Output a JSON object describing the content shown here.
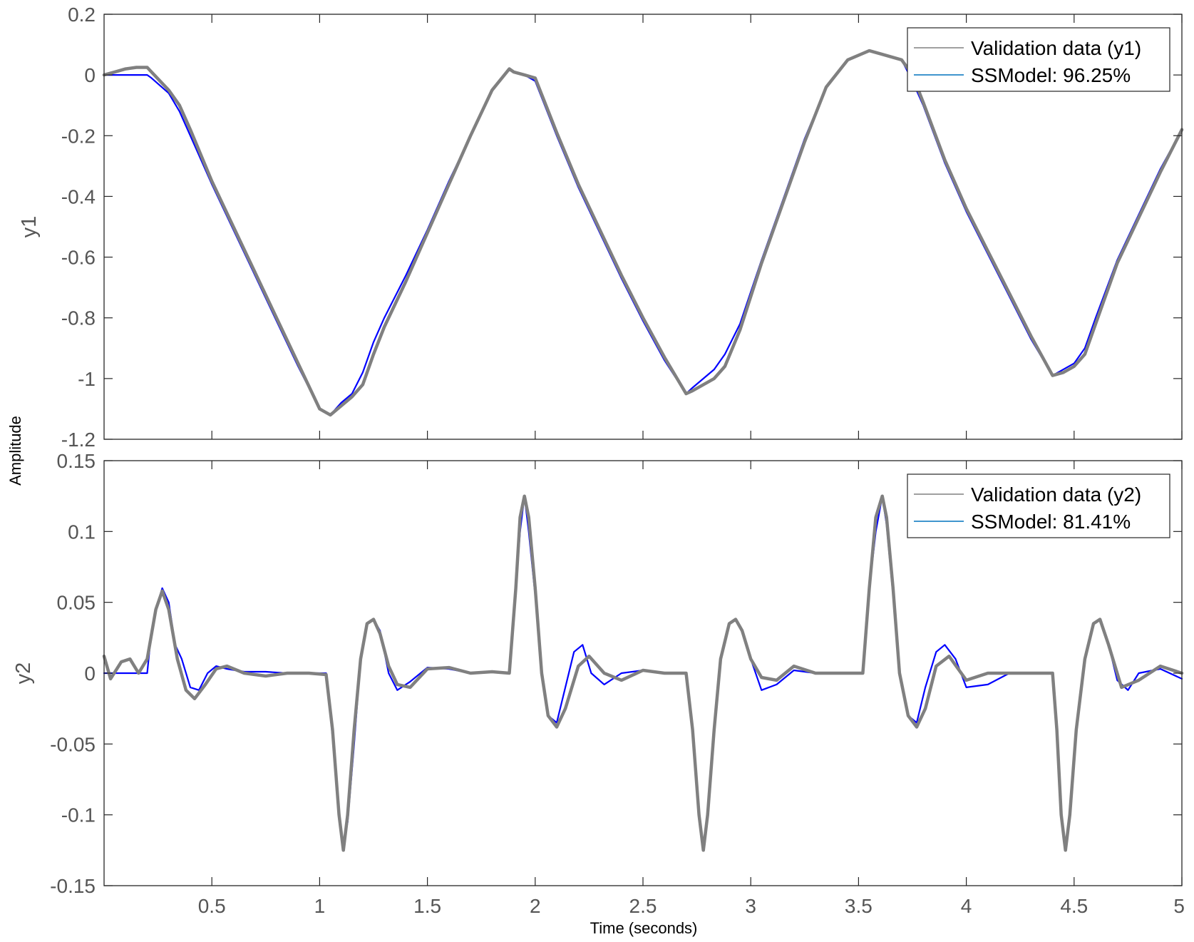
{
  "figure": {
    "ylabel": "Amplitude",
    "xlabel": "Time (seconds)"
  },
  "colors": {
    "validation": "#808080",
    "model": "#0000ff",
    "legend_model_swatch": "#0072bd",
    "axis": "#262626",
    "tick_text": "#555555"
  },
  "chart_data": [
    {
      "type": "line",
      "ylabel": "y1",
      "xlim": [
        0,
        5
      ],
      "ylim": [
        -1.2,
        0.2
      ],
      "yticks": [
        0.2,
        0,
        -0.2,
        -0.4,
        -0.6,
        -0.8,
        -1,
        -1.2
      ],
      "xticks": [],
      "grid": false,
      "legend_position": "top-right",
      "series": [
        {
          "name": "Validation data (y1)",
          "color": "#808080",
          "x": [
            0,
            0.05,
            0.1,
            0.15,
            0.2,
            0.22,
            0.3,
            0.35,
            0.4,
            0.5,
            0.6,
            0.7,
            0.8,
            0.9,
            1.0,
            1.05,
            1.1,
            1.15,
            1.2,
            1.25,
            1.3,
            1.4,
            1.5,
            1.6,
            1.7,
            1.8,
            1.88,
            1.9,
            1.95,
            2.0,
            2.1,
            2.2,
            2.3,
            2.4,
            2.5,
            2.6,
            2.7,
            2.73,
            2.78,
            2.83,
            2.88,
            2.95,
            3.05,
            3.15,
            3.25,
            3.35,
            3.45,
            3.55,
            3.6,
            3.7,
            3.75,
            3.8,
            3.9,
            4.0,
            4.1,
            4.2,
            4.3,
            4.4,
            4.45,
            4.5,
            4.55,
            4.6,
            4.7,
            4.8,
            4.9,
            5.0
          ],
          "values": [
            0,
            0.01,
            0.02,
            0.025,
            0.025,
            0.01,
            -0.05,
            -0.1,
            -0.18,
            -0.35,
            -0.5,
            -0.65,
            -0.8,
            -0.95,
            -1.1,
            -1.12,
            -1.09,
            -1.06,
            -1.02,
            -0.92,
            -0.83,
            -0.68,
            -0.52,
            -0.36,
            -0.2,
            -0.05,
            0.02,
            0.01,
            0.0,
            -0.01,
            -0.19,
            -0.36,
            -0.51,
            -0.66,
            -0.8,
            -0.93,
            -1.05,
            -1.04,
            -1.02,
            -1.0,
            -0.96,
            -0.84,
            -0.62,
            -0.42,
            -0.22,
            -0.04,
            0.05,
            0.08,
            0.07,
            0.05,
            -0.0,
            -0.09,
            -0.28,
            -0.44,
            -0.58,
            -0.72,
            -0.86,
            -0.99,
            -0.98,
            -0.96,
            -0.92,
            -0.82,
            -0.62,
            -0.47,
            -0.32,
            -0.18
          ]
        },
        {
          "name": "SSModel: 96.25%",
          "color": "#0000ff",
          "x": [
            0,
            0.05,
            0.1,
            0.15,
            0.2,
            0.22,
            0.3,
            0.35,
            0.4,
            0.5,
            0.6,
            0.7,
            0.8,
            0.9,
            1.0,
            1.05,
            1.1,
            1.15,
            1.2,
            1.25,
            1.3,
            1.4,
            1.5,
            1.6,
            1.7,
            1.8,
            1.88,
            1.9,
            1.95,
            2.0,
            2.1,
            2.2,
            2.3,
            2.4,
            2.5,
            2.6,
            2.7,
            2.73,
            2.78,
            2.83,
            2.88,
            2.95,
            3.05,
            3.15,
            3.25,
            3.35,
            3.45,
            3.55,
            3.6,
            3.7,
            3.75,
            3.8,
            3.9,
            4.0,
            4.1,
            4.2,
            4.3,
            4.4,
            4.45,
            4.5,
            4.55,
            4.6,
            4.7,
            4.8,
            4.9,
            5.0
          ],
          "values": [
            0,
            0,
            0,
            0,
            0,
            -0.01,
            -0.06,
            -0.12,
            -0.2,
            -0.36,
            -0.51,
            -0.66,
            -0.81,
            -0.96,
            -1.1,
            -1.12,
            -1.08,
            -1.05,
            -0.98,
            -0.88,
            -0.8,
            -0.66,
            -0.51,
            -0.35,
            -0.2,
            -0.05,
            0.02,
            0.01,
            0.0,
            -0.02,
            -0.2,
            -0.37,
            -0.52,
            -0.67,
            -0.81,
            -0.94,
            -1.05,
            -1.03,
            -1.0,
            -0.97,
            -0.92,
            -0.82,
            -0.61,
            -0.41,
            -0.21,
            -0.04,
            0.05,
            0.08,
            0.07,
            0.05,
            -0.02,
            -0.1,
            -0.29,
            -0.45,
            -0.59,
            -0.73,
            -0.87,
            -0.99,
            -0.97,
            -0.95,
            -0.9,
            -0.8,
            -0.61,
            -0.46,
            -0.31,
            -0.18
          ]
        }
      ]
    },
    {
      "type": "line",
      "ylabel": "y2",
      "xlim": [
        0,
        5
      ],
      "ylim": [
        -0.15,
        0.15
      ],
      "yticks": [
        0.15,
        0.1,
        0.05,
        0,
        -0.05,
        -0.1,
        -0.15
      ],
      "xticks": [
        "0.5",
        "1",
        "1.5",
        "2",
        "2.5",
        "3",
        "3.5",
        "4",
        "4.5",
        "5"
      ],
      "grid": false,
      "legend_position": "top-right",
      "series": [
        {
          "name": "Validation data (y2)",
          "color": "#808080",
          "x": [
            0,
            0.03,
            0.08,
            0.12,
            0.16,
            0.2,
            0.24,
            0.27,
            0.3,
            0.34,
            0.38,
            0.42,
            0.47,
            0.52,
            0.57,
            0.65,
            0.75,
            0.85,
            0.95,
            1.03,
            1.06,
            1.09,
            1.11,
            1.13,
            1.16,
            1.19,
            1.22,
            1.25,
            1.28,
            1.32,
            1.36,
            1.42,
            1.5,
            1.6,
            1.7,
            1.8,
            1.88,
            1.91,
            1.93,
            1.95,
            1.97,
            2.0,
            2.03,
            2.06,
            2.1,
            2.14,
            2.2,
            2.25,
            2.32,
            2.4,
            2.5,
            2.6,
            2.7,
            2.73,
            2.76,
            2.78,
            2.8,
            2.83,
            2.86,
            2.9,
            2.93,
            2.96,
            3.0,
            3.05,
            3.12,
            3.2,
            3.3,
            3.4,
            3.52,
            3.55,
            3.58,
            3.61,
            3.63,
            3.66,
            3.69,
            3.73,
            3.77,
            3.81,
            3.86,
            3.92,
            4.0,
            4.1,
            4.2,
            4.3,
            4.4,
            4.42,
            4.44,
            4.46,
            4.48,
            4.51,
            4.55,
            4.59,
            4.62,
            4.66,
            4.72,
            4.8,
            4.9,
            5.0
          ],
          "values": [
            0.012,
            -0.004,
            0.008,
            0.01,
            0.0,
            0.01,
            0.045,
            0.058,
            0.045,
            0.01,
            -0.012,
            -0.018,
            -0.008,
            0.003,
            0.005,
            0.0,
            -0.002,
            0.0,
            0.0,
            -0.001,
            -0.04,
            -0.1,
            -0.125,
            -0.1,
            -0.04,
            0.01,
            0.035,
            0.038,
            0.028,
            0.005,
            -0.008,
            -0.01,
            0.003,
            0.004,
            0.0,
            0.001,
            0.0,
            0.06,
            0.11,
            0.125,
            0.11,
            0.06,
            0.0,
            -0.03,
            -0.038,
            -0.025,
            0.005,
            0.012,
            0.0,
            -0.005,
            0.002,
            0.0,
            0.0,
            -0.04,
            -0.1,
            -0.125,
            -0.1,
            -0.04,
            0.01,
            0.035,
            0.038,
            0.03,
            0.01,
            -0.003,
            -0.005,
            0.005,
            0.0,
            0.0,
            0.0,
            0.06,
            0.11,
            0.125,
            0.11,
            0.06,
            0.0,
            -0.03,
            -0.038,
            -0.025,
            0.005,
            0.012,
            -0.005,
            0.0,
            0.0,
            0.0,
            0.0,
            -0.04,
            -0.1,
            -0.125,
            -0.1,
            -0.04,
            0.01,
            0.035,
            0.038,
            0.02,
            -0.01,
            -0.005,
            0.005,
            0.0
          ]
        },
        {
          "name": "SSModel: 81.41%",
          "color": "#0000ff",
          "x": [
            0,
            0.05,
            0.1,
            0.15,
            0.2,
            0.22,
            0.25,
            0.27,
            0.3,
            0.33,
            0.36,
            0.4,
            0.44,
            0.48,
            0.52,
            0.57,
            0.65,
            0.75,
            0.85,
            0.95,
            1.03,
            1.06,
            1.09,
            1.11,
            1.13,
            1.16,
            1.19,
            1.22,
            1.25,
            1.28,
            1.32,
            1.36,
            1.42,
            1.5,
            1.6,
            1.7,
            1.8,
            1.88,
            1.91,
            1.93,
            1.95,
            1.97,
            2.0,
            2.03,
            2.06,
            2.1,
            2.14,
            2.18,
            2.22,
            2.26,
            2.32,
            2.4,
            2.5,
            2.6,
            2.7,
            2.73,
            2.76,
            2.78,
            2.8,
            2.83,
            2.86,
            2.9,
            2.93,
            2.96,
            3.0,
            3.05,
            3.12,
            3.2,
            3.3,
            3.4,
            3.52,
            3.55,
            3.58,
            3.61,
            3.63,
            3.66,
            3.69,
            3.73,
            3.77,
            3.81,
            3.86,
            3.9,
            3.95,
            4.0,
            4.1,
            4.2,
            4.3,
            4.4,
            4.42,
            4.44,
            4.46,
            4.48,
            4.51,
            4.55,
            4.59,
            4.62,
            4.66,
            4.7,
            4.75,
            4.8,
            4.9,
            5.0
          ],
          "values": [
            0,
            0,
            0,
            0,
            0,
            0.03,
            0.05,
            0.06,
            0.05,
            0.02,
            0.01,
            -0.01,
            -0.012,
            0.0,
            0.005,
            0.003,
            0.001,
            0.001,
            0.0,
            0.0,
            0.0,
            -0.045,
            -0.1,
            -0.12,
            -0.105,
            -0.05,
            0.01,
            0.035,
            0.038,
            0.03,
            0.0,
            -0.012,
            -0.006,
            0.004,
            0.003,
            0.0,
            0.001,
            0.0,
            0.06,
            0.1,
            0.125,
            0.1,
            0.055,
            0.0,
            -0.03,
            -0.035,
            -0.01,
            0.015,
            0.02,
            0.0,
            -0.008,
            0.0,
            0.002,
            0.0,
            0.0,
            -0.04,
            -0.1,
            -0.12,
            -0.1,
            -0.04,
            0.01,
            0.035,
            0.038,
            0.03,
            0.01,
            -0.012,
            -0.008,
            0.002,
            0.0,
            0.0,
            0.0,
            0.06,
            0.1,
            0.125,
            0.105,
            0.055,
            0.0,
            -0.03,
            -0.035,
            -0.01,
            0.015,
            0.02,
            0.01,
            -0.01,
            -0.008,
            0.0,
            0.0,
            0.0,
            -0.04,
            -0.1,
            -0.125,
            -0.1,
            -0.04,
            0.01,
            0.035,
            0.038,
            0.02,
            -0.005,
            -0.012,
            0.0,
            0.003,
            -0.004
          ]
        }
      ]
    }
  ]
}
